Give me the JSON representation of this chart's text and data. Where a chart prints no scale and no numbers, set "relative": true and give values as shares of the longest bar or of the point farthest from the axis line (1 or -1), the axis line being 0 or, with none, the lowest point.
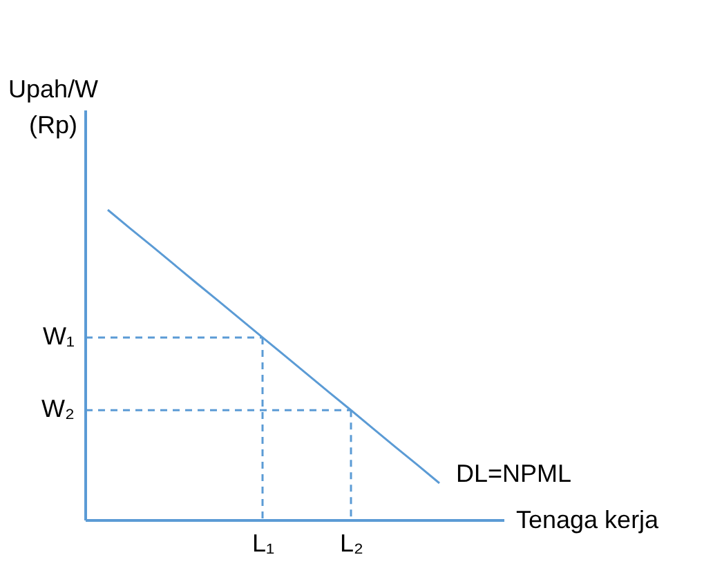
{
  "chart_data": {
    "type": "line",
    "relative": true,
    "xlabel": "Tenaga kerja",
    "ylabel": "Upah/W\n(Rp)",
    "categories": [
      null,
      null,
      null,
      null,
      null,
      null,
      null,
      null,
      "L₁",
      null,
      null,
      null,
      "L₂",
      null,
      null,
      null,
      null,
      null,
      null,
      null
    ],
    "series": [
      {
        "name": "DL=NPML",
        "color": "#5b9bd5",
        "values": [
          null,
          1,
          0.941,
          0.883,
          0.824,
          0.765,
          0.707,
          0.648,
          0.589,
          0.531,
          0.472,
          0.413,
          0.355,
          0.296,
          0.237,
          0.179,
          0.12,
          null,
          null,
          null
        ],
        "line_style": "solid"
      },
      {
        "name": "W₁",
        "color": "#5b9bd5",
        "values": [
          0.589,
          0.589,
          0.589,
          0.589,
          0.589,
          0.589,
          0.589,
          0.589,
          0.589,
          null,
          null,
          null,
          null,
          null,
          null,
          null,
          null,
          null,
          null,
          null
        ],
        "line_style": "dashed"
      },
      {
        "name": "W₂",
        "color": "#5b9bd5",
        "values": [
          0.355,
          0.355,
          0.355,
          0.355,
          0.355,
          0.355,
          0.355,
          0.355,
          0.355,
          0.355,
          0.355,
          0.355,
          0.355,
          null,
          null,
          null,
          null,
          null,
          null,
          null
        ],
        "line_style": "dashed"
      }
    ]
  }
}
